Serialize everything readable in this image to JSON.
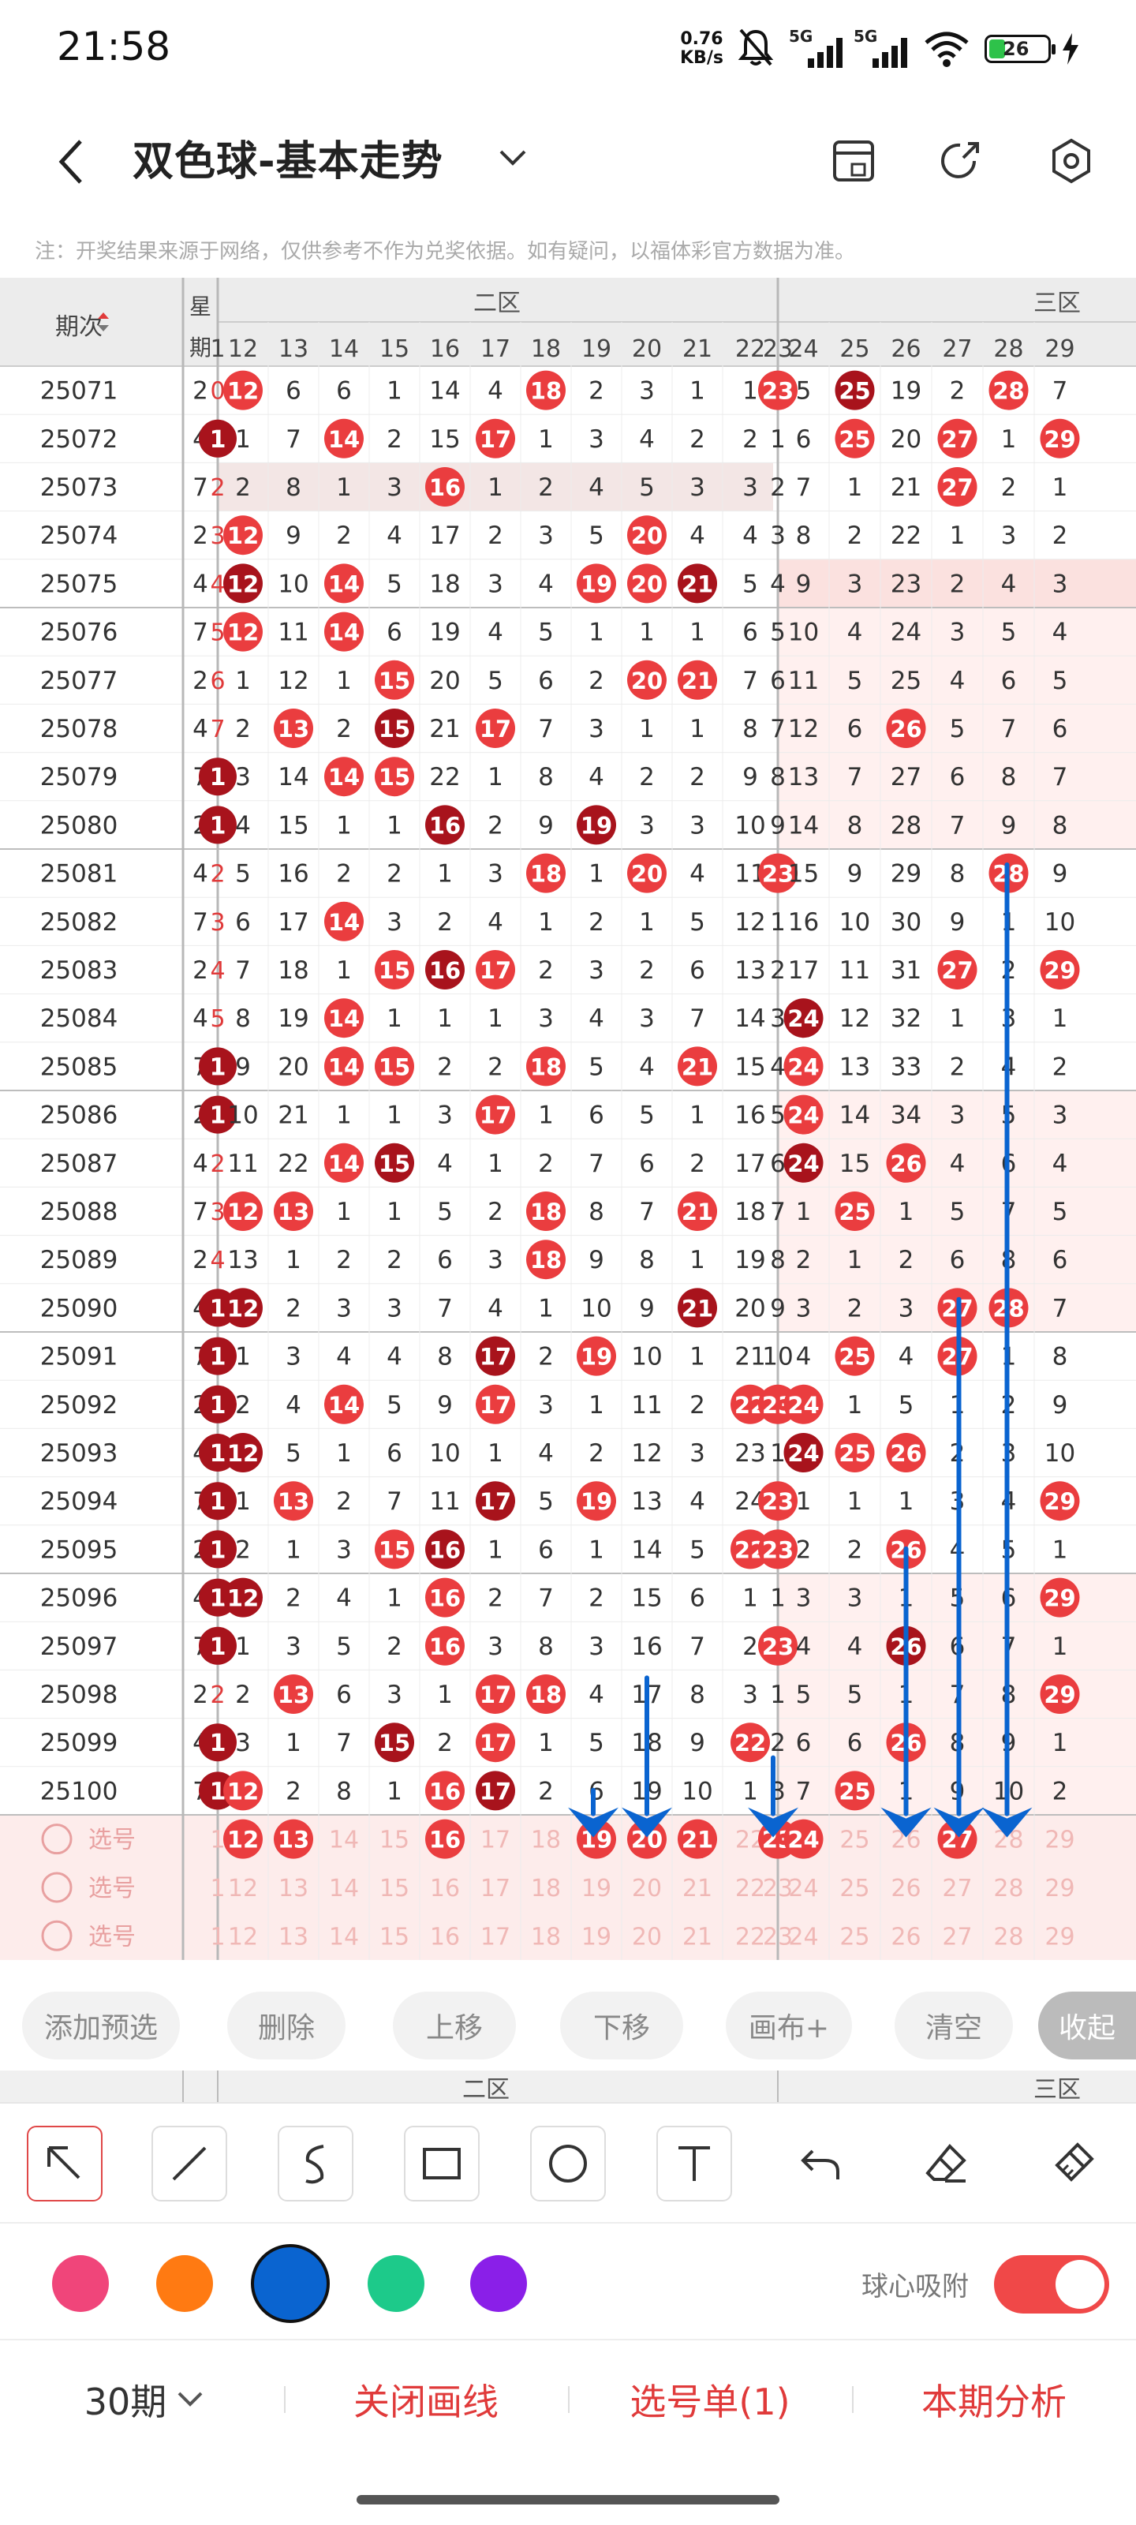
{
  "status_bar": {
    "time": "21:58",
    "speed_value": "0.76",
    "speed_unit": "KB/s",
    "sig1": "5G",
    "sig2": "5G",
    "battery": "26"
  },
  "header": {
    "title": "双色球-基本走势"
  },
  "disclaimer": "注：开奖结果来源于网络，仅供参考不作为兑奖依据。如有疑问，以福体彩官方数据为准。",
  "table": {
    "period_header": "期次",
    "week_header": "星期",
    "zone2_label": "二区",
    "zone3_label": "三区",
    "col_numbers": [
      "1",
      "12",
      "13",
      "14",
      "15",
      "16",
      "17",
      "18",
      "19",
      "20",
      "21",
      "22",
      "23",
      "24",
      "25",
      "26",
      "27",
      "28",
      "29"
    ],
    "rows": [
      [
        "25071",
        "2",
        "0",
        "12",
        "6",
        "6",
        "1",
        "14",
        "4",
        "18",
        "2",
        "3",
        "1",
        "1",
        "23",
        "5",
        "25",
        "19",
        "2",
        "28",
        "7"
      ],
      [
        "25072",
        "4",
        "1",
        "1",
        "7",
        "14",
        "2",
        "15",
        "17",
        "1",
        "3",
        "4",
        "2",
        "2",
        "1",
        "6",
        "25",
        "20",
        "27",
        "1",
        "29"
      ],
      [
        "25073",
        "7",
        "2",
        "2",
        "8",
        "1",
        "3",
        "16",
        "1",
        "2",
        "4",
        "5",
        "3",
        "3",
        "2",
        "7",
        "1",
        "21",
        "27",
        "2",
        "1"
      ],
      [
        "25074",
        "2",
        "3",
        "12",
        "9",
        "2",
        "4",
        "17",
        "2",
        "3",
        "5",
        "20",
        "4",
        "4",
        "3",
        "8",
        "2",
        "22",
        "1",
        "3",
        "2"
      ],
      [
        "25075",
        "4",
        "4",
        "12",
        "10",
        "14",
        "5",
        "18",
        "3",
        "4",
        "19",
        "20",
        "21",
        "5",
        "4",
        "9",
        "3",
        "23",
        "2",
        "4",
        "3"
      ],
      [
        "25076",
        "7",
        "5",
        "12",
        "11",
        "14",
        "6",
        "19",
        "4",
        "5",
        "1",
        "1",
        "1",
        "6",
        "5",
        "10",
        "4",
        "24",
        "3",
        "5",
        "4"
      ],
      [
        "25077",
        "2",
        "6",
        "1",
        "12",
        "1",
        "15",
        "20",
        "5",
        "6",
        "2",
        "20",
        "21",
        "7",
        "6",
        "11",
        "5",
        "25",
        "4",
        "6",
        "5"
      ],
      [
        "25078",
        "4",
        "7",
        "2",
        "13",
        "2",
        "15",
        "21",
        "17",
        "7",
        "3",
        "1",
        "1",
        "8",
        "7",
        "12",
        "6",
        "26",
        "5",
        "7",
        "6"
      ],
      [
        "25079",
        "7",
        "1",
        "3",
        "14",
        "14",
        "15",
        "22",
        "1",
        "8",
        "4",
        "2",
        "2",
        "9",
        "8",
        "13",
        "7",
        "27",
        "6",
        "8",
        "7"
      ],
      [
        "25080",
        "2",
        "1",
        "4",
        "15",
        "1",
        "1",
        "16",
        "2",
        "9",
        "19",
        "3",
        "3",
        "10",
        "9",
        "14",
        "8",
        "28",
        "7",
        "9",
        "8"
      ],
      [
        "25081",
        "4",
        "2",
        "5",
        "16",
        "2",
        "2",
        "1",
        "3",
        "18",
        "1",
        "20",
        "4",
        "11",
        "23",
        "15",
        "9",
        "29",
        "8",
        "28",
        "9"
      ],
      [
        "25082",
        "7",
        "3",
        "6",
        "17",
        "14",
        "3",
        "2",
        "4",
        "1",
        "2",
        "1",
        "5",
        "12",
        "1",
        "16",
        "10",
        "30",
        "9",
        "1",
        "10"
      ],
      [
        "25083",
        "2",
        "4",
        "7",
        "18",
        "1",
        "15",
        "16",
        "17",
        "2",
        "3",
        "2",
        "6",
        "13",
        "2",
        "17",
        "11",
        "31",
        "27",
        "2",
        "29"
      ],
      [
        "25084",
        "4",
        "5",
        "8",
        "19",
        "14",
        "1",
        "1",
        "1",
        "3",
        "4",
        "3",
        "7",
        "14",
        "3",
        "24",
        "12",
        "32",
        "1",
        "3",
        "1"
      ],
      [
        "25085",
        "7",
        "1",
        "9",
        "20",
        "14",
        "15",
        "2",
        "2",
        "18",
        "5",
        "4",
        "21",
        "15",
        "4",
        "24",
        "13",
        "33",
        "2",
        "4",
        "2"
      ],
      [
        "25086",
        "2",
        "1",
        "10",
        "21",
        "1",
        "1",
        "3",
        "17",
        "1",
        "6",
        "5",
        "1",
        "16",
        "5",
        "24",
        "14",
        "34",
        "3",
        "5",
        "3"
      ],
      [
        "25087",
        "4",
        "2",
        "11",
        "22",
        "14",
        "15",
        "4",
        "1",
        "2",
        "7",
        "6",
        "2",
        "17",
        "6",
        "24",
        "15",
        "26",
        "4",
        "6",
        "4"
      ],
      [
        "25088",
        "7",
        "3",
        "12",
        "13",
        "1",
        "1",
        "5",
        "2",
        "18",
        "8",
        "7",
        "21",
        "18",
        "7",
        "1",
        "25",
        "1",
        "5",
        "7",
        "5"
      ],
      [
        "25089",
        "2",
        "4",
        "13",
        "1",
        "2",
        "2",
        "6",
        "3",
        "18",
        "9",
        "8",
        "1",
        "19",
        "8",
        "2",
        "1",
        "2",
        "6",
        "8",
        "6"
      ],
      [
        "25090",
        "4",
        "1",
        "12",
        "2",
        "3",
        "3",
        "7",
        "4",
        "1",
        "10",
        "9",
        "21",
        "20",
        "9",
        "3",
        "2",
        "3",
        "27",
        "28",
        "7"
      ],
      [
        "25091",
        "7",
        "1",
        "1",
        "3",
        "4",
        "4",
        "8",
        "17",
        "2",
        "19",
        "10",
        "1",
        "21",
        "10",
        "4",
        "25",
        "4",
        "27",
        "1",
        "8"
      ],
      [
        "25092",
        "2",
        "1",
        "2",
        "4",
        "14",
        "5",
        "9",
        "17",
        "3",
        "1",
        "11",
        "2",
        "22",
        "23",
        "24",
        "1",
        "5",
        "1",
        "2",
        "9"
      ],
      [
        "25093",
        "4",
        "1",
        "12",
        "5",
        "1",
        "6",
        "10",
        "1",
        "4",
        "2",
        "12",
        "3",
        "23",
        "1",
        "24",
        "25",
        "26",
        "2",
        "3",
        "10"
      ],
      [
        "25094",
        "7",
        "1",
        "1",
        "13",
        "2",
        "7",
        "11",
        "17",
        "5",
        "19",
        "13",
        "4",
        "24",
        "23",
        "1",
        "1",
        "1",
        "3",
        "4",
        "29"
      ],
      [
        "25095",
        "2",
        "1",
        "2",
        "1",
        "3",
        "15",
        "16",
        "1",
        "6",
        "1",
        "14",
        "5",
        "22",
        "23",
        "2",
        "2",
        "26",
        "4",
        "5",
        "1"
      ],
      [
        "25096",
        "4",
        "1",
        "12",
        "2",
        "4",
        "1",
        "16",
        "2",
        "7",
        "2",
        "15",
        "6",
        "1",
        "1",
        "3",
        "3",
        "1",
        "5",
        "6",
        "29"
      ],
      [
        "25097",
        "7",
        "1",
        "1",
        "3",
        "5",
        "2",
        "16",
        "3",
        "8",
        "3",
        "16",
        "7",
        "2",
        "23",
        "4",
        "4",
        "26",
        "6",
        "7",
        "1"
      ],
      [
        "25098",
        "2",
        "2",
        "2",
        "13",
        "6",
        "3",
        "1",
        "17",
        "18",
        "4",
        "17",
        "8",
        "3",
        "1",
        "5",
        "5",
        "1",
        "7",
        "8",
        "29"
      ],
      [
        "25099",
        "4",
        "1",
        "3",
        "1",
        "7",
        "15",
        "2",
        "17",
        "1",
        "5",
        "18",
        "9",
        "22",
        "2",
        "6",
        "6",
        "26",
        "8",
        "9",
        "1"
      ],
      [
        "25100",
        "7",
        "1",
        "12",
        "2",
        "8",
        "1",
        "16",
        "17",
        "2",
        "6",
        "19",
        "10",
        "1",
        "3",
        "7",
        "25",
        "1",
        "9",
        "10",
        "2"
      ]
    ],
    "pick_label": "选号"
  },
  "toolbar": {
    "add": "添加预选",
    "delete": "删除",
    "up": "上移",
    "down": "下移",
    "canvas": "画布+",
    "clear": "清空",
    "collapse": "收起"
  },
  "drawing": {
    "snap_label": "球心吸附",
    "colors": [
      "#f0457a",
      "#ff7a12",
      "#0a64d0",
      "#1dca8a",
      "#8a1fe8"
    ],
    "selected_color": "#0a64d0"
  },
  "bottom": {
    "periods": "30期",
    "close_draw": "关闭画线",
    "pick_list": "选号单(1)",
    "analysis": "本期分析"
  }
}
